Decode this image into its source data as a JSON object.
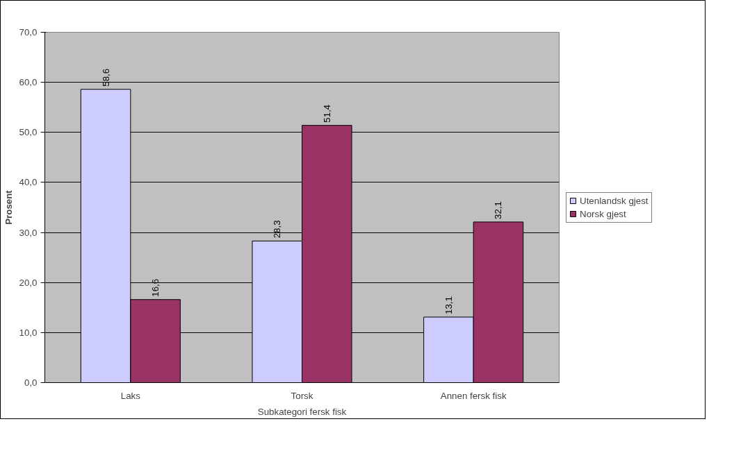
{
  "chart_data": {
    "type": "bar",
    "xlabel": "Subkategori fersk fisk",
    "ylabel": "Prosent",
    "categories": [
      "Laks",
      "Torsk",
      "Annen fersk fisk"
    ],
    "series": [
      {
        "name": "Utenlandsk gjest",
        "color": "#ccccff",
        "values": [
          58.6,
          28.3,
          13.1
        ],
        "value_labels": [
          "58,6",
          "28,3",
          "13,1"
        ]
      },
      {
        "name": "Norsk gjest",
        "color": "#993366",
        "values": [
          16.6,
          51.4,
          32.1
        ],
        "value_labels": [
          "16,6",
          "51,4",
          "32,1"
        ]
      }
    ],
    "ylim": [
      0,
      70
    ],
    "yticks": [
      {
        "value": 0,
        "label": "0,0"
      },
      {
        "value": 10,
        "label": "10,0"
      },
      {
        "value": 20,
        "label": "20,0"
      },
      {
        "value": 30,
        "label": "30,0"
      },
      {
        "value": 40,
        "label": "40,0"
      },
      {
        "value": 50,
        "label": "50,0"
      },
      {
        "value": 60,
        "label": "60,0"
      },
      {
        "value": 70,
        "label": "70,0"
      }
    ],
    "grid": "y",
    "legend": "right"
  }
}
